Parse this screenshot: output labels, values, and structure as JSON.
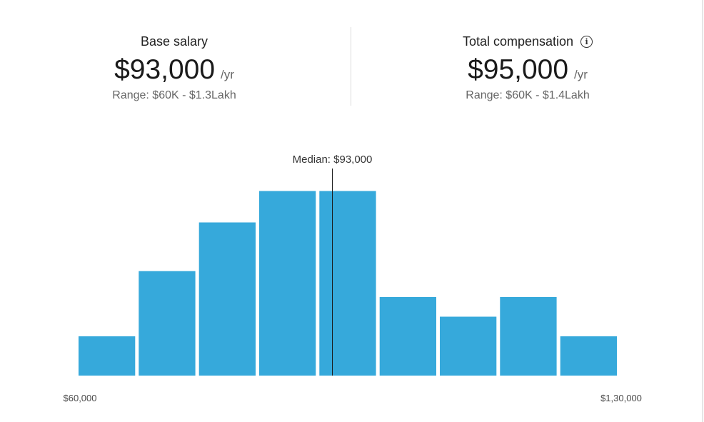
{
  "base_salary": {
    "title": "Base salary",
    "amount": "$93,000",
    "unit": "/yr",
    "range": "Range: $60K - $1.3Lakh"
  },
  "total_compensation": {
    "title": "Total compensation",
    "info_icon": "info-icon",
    "amount": "$95,000",
    "unit": "/yr",
    "range": "Range: $60K - $1.4Lakh"
  },
  "chart_data": {
    "type": "bar",
    "title": "",
    "xlabel": "",
    "ylabel": "",
    "bar_color": "#36a9db",
    "x_range": [
      60000,
      130000
    ],
    "x_tick_labels": [
      "$60,000",
      "$1,30,000"
    ],
    "values": [
      1,
      2.66,
      3.9,
      4.7,
      4.7,
      2,
      1.5,
      2,
      1
    ],
    "median": {
      "value": 93000,
      "label": "Median: $93,000"
    },
    "grid": false,
    "legend": "none"
  }
}
